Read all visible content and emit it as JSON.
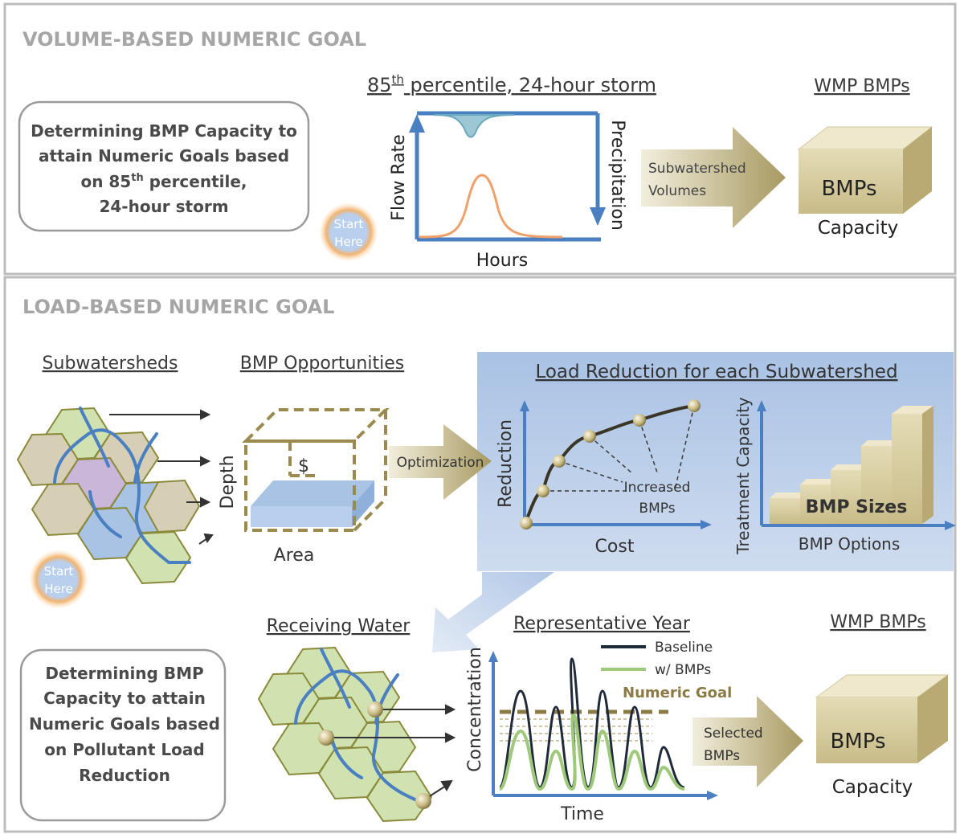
{
  "volume": {
    "section_title": "VOLUME-BASED NUMERIC GOAL",
    "box_lines": [
      "Determining BMP Capacity to",
      "attain Numeric Goals based",
      "on 85",
      "th",
      " percentile,",
      "24-hour storm"
    ],
    "start_here": [
      "Start",
      "Here"
    ],
    "storm_title_a": "85",
    "storm_title_sup": "th",
    "storm_title_b": " percentile, 24-hour storm",
    "axis_flow_rate": "Flow Rate",
    "axis_precipitation": "Precipitation",
    "axis_hours": "Hours",
    "arrow_label": [
      "Subwatershed",
      "Volumes"
    ],
    "wmp_title": "WMP BMPs",
    "bmps_label": "BMPs",
    "capacity_label": "Capacity"
  },
  "load": {
    "section_title": "LOAD-BASED NUMERIC GOAL",
    "subwatersheds_title": "Subwatersheds",
    "opportunities_title": "BMP Opportunities",
    "depth_label": "Depth",
    "area_label": "Area",
    "dollar_label": "$",
    "optimization_label": "Optimization",
    "reduction_title": "Load Reduction for each Subwatershed",
    "reduction_axis": "Reduction",
    "cost_axis": "Cost",
    "increased_bmps": [
      "Increased",
      "BMPs"
    ],
    "treatment_axis": "Treatment Capacity",
    "bmp_options_axis": "BMP Options",
    "bmp_sizes_label": "BMP Sizes",
    "start_here": [
      "Start",
      "Here"
    ],
    "box_lines": [
      "Determining BMP",
      "Capacity to attain",
      "Numeric Goals based",
      "on Pollutant Load",
      "Reduction"
    ],
    "receiving_title": "Receiving Water",
    "rep_year_title": "Representative Year",
    "legend_baseline": "Baseline",
    "legend_with_bmps": "w/ BMPs",
    "legend_numeric_goal": "Numeric Goal",
    "concentration_axis": "Concentration",
    "time_axis": "Time",
    "selected_label": [
      "Selected",
      "BMPs"
    ],
    "wmp_title": "WMP BMPs",
    "bmps_label": "BMPs",
    "capacity_label": "Capacity"
  },
  "colors": {
    "section_title": "#a6a6a6",
    "axis_blue": "#4a7fc1",
    "river_blue": "#4a7fc1",
    "hex_green": "#cfe2b0",
    "hex_tan": "#d6cfb6",
    "hex_purple": "#c9b6d8",
    "hex_blue": "#a9c3e4",
    "hex_stroke": "#8a8a3a",
    "bmp_box": "#d9cfa3",
    "arrow_tan": "#c4b98e",
    "panel_blue": "#b8cde8",
    "peak_orange": "#f0a06a",
    "peak_teal": "#7cb6c8",
    "baseline_dark": "#1f2a3a",
    "bmp_green": "#9fc97a",
    "goal_brown": "#8c7a44"
  },
  "icons": {
    "start_here_badge": "orange-glow-circle-icon",
    "bmp_box": "beige-3d-box-icon",
    "flow_arrow": "tan-block-arrow-icon",
    "bmp_node": "sphere-icon"
  }
}
